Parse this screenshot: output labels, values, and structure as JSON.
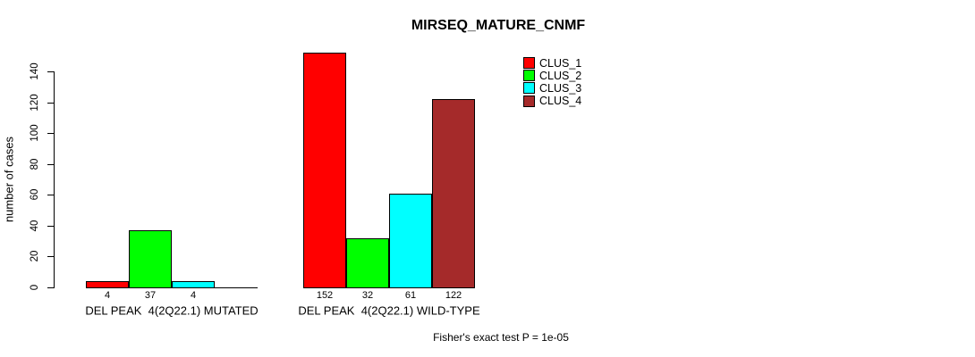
{
  "chart_data": {
    "type": "bar",
    "title": "MIRSEQ_MATURE_CNMF",
    "xlabel": "",
    "ylabel": "number of cases",
    "ylim": [
      0,
      140
    ],
    "y_ticks": [
      0,
      20,
      40,
      60,
      80,
      100,
      120,
      140
    ],
    "grid": false,
    "legend_position": "top-right",
    "categories": [
      "DEL PEAK  4(2Q22.1) MUTATED",
      "DEL PEAK  4(2Q22.1) WILD-TYPE"
    ],
    "series": [
      {
        "name": "CLUS_1",
        "color": "#FF0000",
        "values": [
          4,
          152
        ]
      },
      {
        "name": "CLUS_2",
        "color": "#00FF00",
        "values": [
          37,
          32
        ]
      },
      {
        "name": "CLUS_3",
        "color": "#00FFFF",
        "values": [
          4,
          61
        ]
      },
      {
        "name": "CLUS_4",
        "color": "#A52A2A",
        "values": [
          0,
          122
        ]
      }
    ],
    "bar_value_labels": [
      [
        "4",
        "37",
        "4",
        ""
      ],
      [
        "152",
        "32",
        "61",
        "122"
      ]
    ],
    "note": "Fisher's exact test P = 1e-05"
  }
}
